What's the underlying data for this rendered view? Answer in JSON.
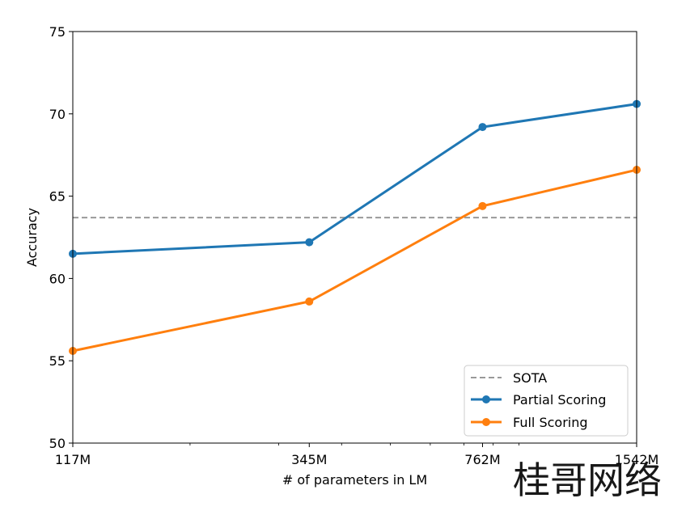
{
  "chart_data": {
    "type": "line",
    "xlabel": "# of parameters in LM",
    "ylabel": "Accuracy",
    "x_scale": "log",
    "x": [
      117,
      345,
      762,
      1542
    ],
    "x_tick_labels": [
      "117M",
      "345M",
      "762M",
      "1542M"
    ],
    "ylim": [
      50,
      75
    ],
    "y_ticks": [
      50,
      55,
      60,
      65,
      70,
      75
    ],
    "grid": false,
    "legend_position": "lower-right",
    "reference_line": {
      "name": "SOTA",
      "value": 63.7,
      "color": "#999999",
      "style": "dashed"
    },
    "series": [
      {
        "name": "Partial Scoring",
        "values": [
          61.5,
          62.2,
          69.2,
          70.6
        ],
        "color": "#1f77b4"
      },
      {
        "name": "Full Scoring",
        "values": [
          55.6,
          58.6,
          64.4,
          66.6
        ],
        "color": "#ff7f0e"
      }
    ]
  },
  "watermark_text": "桂哥网络"
}
